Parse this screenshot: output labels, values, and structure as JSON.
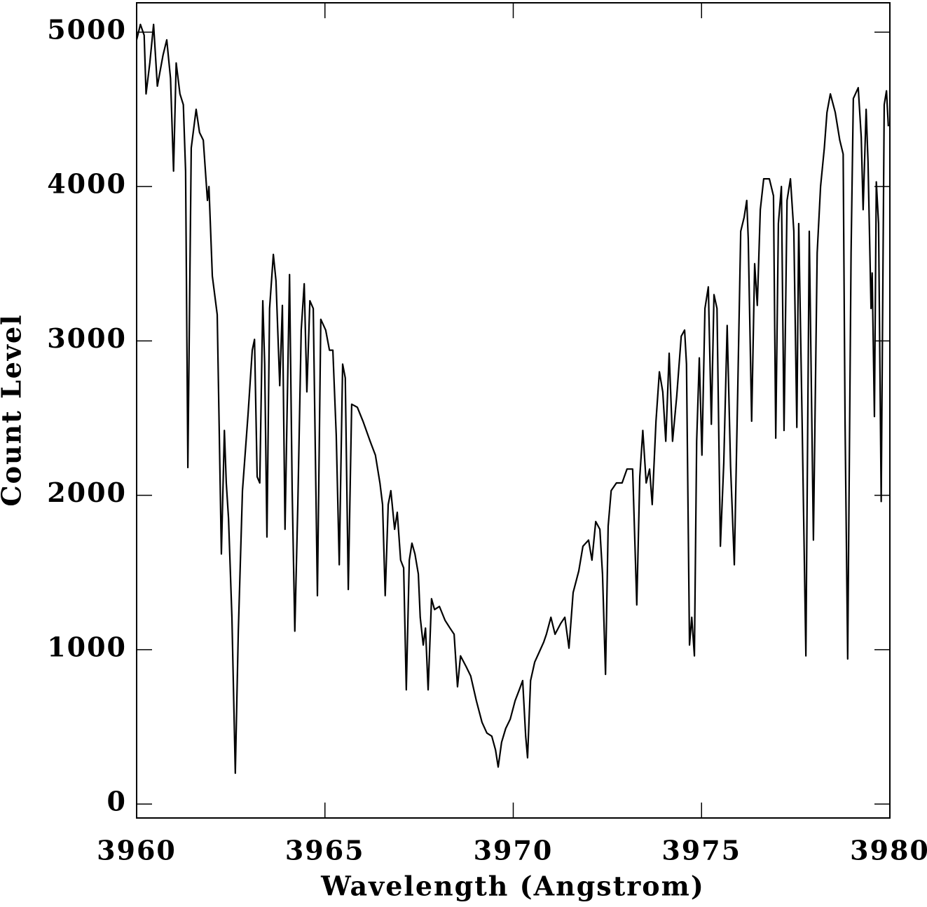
{
  "chart_data": {
    "type": "line",
    "xlabel": "Wavelength (Angstrom)",
    "ylabel": "Count Level",
    "xlim": [
      3960,
      3980
    ],
    "ylim": [
      -90,
      5190
    ],
    "xticks": [
      3960,
      3965,
      3970,
      3975,
      3980
    ],
    "yticks": [
      0,
      1000,
      2000,
      3000,
      4000,
      5000
    ],
    "grid": false,
    "series": [
      {
        "color": "#000000",
        "x": [
          3960.0,
          3960.1,
          3960.2,
          3960.25,
          3960.35,
          3960.45,
          3960.55,
          3960.7,
          3960.8,
          3960.9,
          3960.98,
          3961.05,
          3961.15,
          3961.24,
          3961.3,
          3961.36,
          3961.45,
          3961.58,
          3961.67,
          3961.77,
          3961.88,
          3961.92,
          3962.01,
          3962.14,
          3962.25,
          3962.33,
          3962.38,
          3962.44,
          3962.53,
          3962.62,
          3962.7,
          3962.81,
          3962.96,
          3963.07,
          3963.13,
          3963.2,
          3963.27,
          3963.35,
          3963.4,
          3963.46,
          3963.53,
          3963.63,
          3963.7,
          3963.8,
          3963.87,
          3963.94,
          3964.06,
          3964.13,
          3964.2,
          3964.28,
          3964.37,
          3964.45,
          3964.52,
          3964.6,
          3964.69,
          3964.8,
          3964.89,
          3965.02,
          3965.12,
          3965.21,
          3965.3,
          3965.38,
          3965.47,
          3965.54,
          3965.62,
          3965.71,
          3965.86,
          3966.01,
          3966.2,
          3966.34,
          3966.46,
          3966.53,
          3966.6,
          3966.68,
          3966.75,
          3966.85,
          3966.92,
          3967.01,
          3967.09,
          3967.16,
          3967.24,
          3967.31,
          3967.39,
          3967.48,
          3967.53,
          3967.61,
          3967.67,
          3967.74,
          3967.83,
          3967.91,
          3968.04,
          3968.19,
          3968.32,
          3968.43,
          3968.52,
          3968.6,
          3968.75,
          3968.87,
          3969.02,
          3969.17,
          3969.3,
          3969.43,
          3969.53,
          3969.6,
          3969.69,
          3969.8,
          3969.92,
          3970.05,
          3970.16,
          3970.25,
          3970.33,
          3970.38,
          3970.46,
          3970.57,
          3970.7,
          3970.81,
          3970.88,
          3971.0,
          3971.11,
          3971.26,
          3971.37,
          3971.48,
          3971.59,
          3971.74,
          3971.85,
          3972.0,
          3972.09,
          3972.19,
          3972.3,
          3972.37,
          3972.45,
          3972.52,
          3972.6,
          3972.74,
          3972.89,
          3973.02,
          3973.17,
          3973.28,
          3973.36,
          3973.44,
          3973.53,
          3973.62,
          3973.69,
          3973.79,
          3973.88,
          3973.97,
          3974.05,
          3974.14,
          3974.23,
          3974.34,
          3974.46,
          3974.55,
          3974.6,
          3974.68,
          3974.74,
          3974.81,
          3974.87,
          3974.94,
          3975.01,
          3975.09,
          3975.18,
          3975.26,
          3975.33,
          3975.41,
          3975.5,
          3975.59,
          3975.68,
          3975.77,
          3975.87,
          3975.96,
          3976.04,
          3976.13,
          3976.2,
          3976.24,
          3976.33,
          3976.41,
          3976.48,
          3976.56,
          3976.65,
          3976.8,
          3976.91,
          3976.97,
          3977.04,
          3977.12,
          3977.19,
          3977.27,
          3977.36,
          3977.45,
          3977.53,
          3977.58,
          3977.67,
          3977.77,
          3977.86,
          3977.97,
          3978.07,
          3978.16,
          3978.26,
          3978.33,
          3978.42,
          3978.55,
          3978.67,
          3978.76,
          3978.81,
          3978.88,
          3978.97,
          3979.03,
          3979.16,
          3979.24,
          3979.29,
          3979.37,
          3979.42,
          3979.5,
          3979.53,
          3979.59,
          3979.64,
          3979.7,
          3979.77,
          3979.85,
          3979.91,
          3979.96
        ],
        "values": [
          4950,
          5050,
          4980,
          4600,
          4800,
          5050,
          4650,
          4850,
          4950,
          4700,
          4100,
          4800,
          4600,
          4530,
          4100,
          2180,
          4250,
          4500,
          4350,
          4300,
          3910,
          4000,
          3420,
          3170,
          1620,
          2420,
          2080,
          1850,
          1210,
          200,
          1120,
          2030,
          2530,
          2940,
          3010,
          2120,
          2080,
          3260,
          2850,
          1730,
          3210,
          3560,
          3390,
          2710,
          3230,
          1780,
          3430,
          2030,
          1120,
          1940,
          3070,
          3370,
          2670,
          3260,
          3210,
          1350,
          3140,
          3070,
          2940,
          2940,
          2390,
          1550,
          2850,
          2760,
          1390,
          2590,
          2570,
          2480,
          2350,
          2260,
          2080,
          1940,
          1350,
          1940,
          2030,
          1780,
          1890,
          1580,
          1530,
          740,
          1580,
          1690,
          1620,
          1490,
          1210,
          1030,
          1140,
          740,
          1330,
          1260,
          1280,
          1190,
          1140,
          1100,
          760,
          960,
          890,
          830,
          670,
          530,
          460,
          440,
          350,
          240,
          400,
          490,
          550,
          670,
          740,
          800,
          440,
          300,
          800,
          920,
          990,
          1050,
          1100,
          1210,
          1100,
          1170,
          1210,
          1010,
          1370,
          1510,
          1670,
          1710,
          1580,
          1830,
          1780,
          1490,
          840,
          1800,
          2030,
          2080,
          2080,
          2170,
          2170,
          1290,
          2120,
          2420,
          2080,
          2170,
          1940,
          2480,
          2800,
          2670,
          2350,
          2920,
          2350,
          2640,
          3030,
          3070,
          2850,
          1030,
          1210,
          960,
          2350,
          2890,
          2260,
          3210,
          3350,
          2460,
          3300,
          3210,
          1670,
          2210,
          3100,
          2190,
          1550,
          2670,
          3710,
          3800,
          3910,
          3660,
          2480,
          3500,
          3230,
          3850,
          4050,
          4050,
          3940,
          2370,
          3760,
          4000,
          2420,
          3910,
          4050,
          3710,
          2440,
          3760,
          2480,
          960,
          3710,
          1710,
          3570,
          4000,
          4250,
          4480,
          4600,
          4480,
          4300,
          4210,
          2480,
          940,
          3570,
          4570,
          4640,
          4320,
          3850,
          4500,
          4160,
          3210,
          3440,
          2510,
          4030,
          3760,
          1960,
          4530,
          4620,
          4390
        ]
      }
    ]
  }
}
